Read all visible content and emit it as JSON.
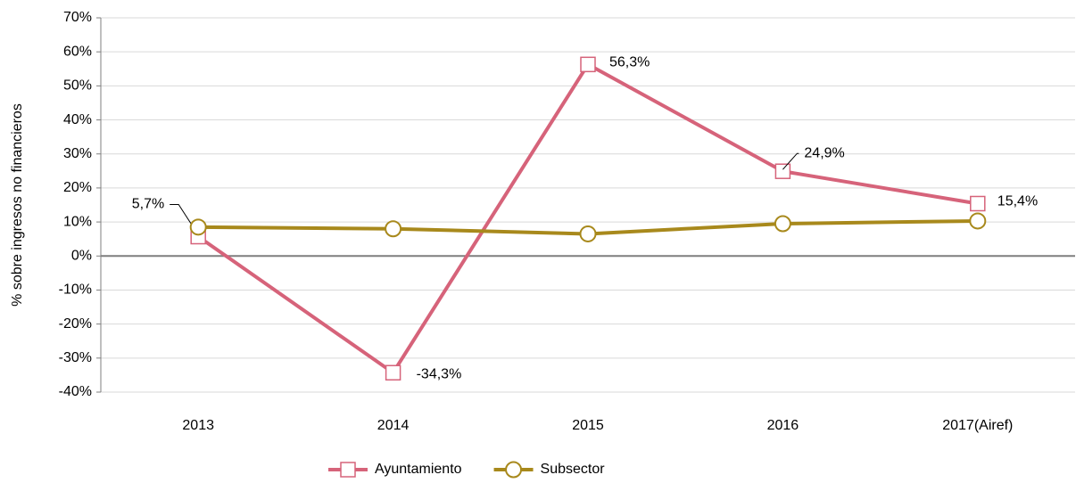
{
  "chart_data": {
    "type": "line",
    "y_label": "% sobre ingresos no financieros",
    "categories": [
      "2013",
      "2014",
      "2015",
      "2016",
      "2017(Airef)"
    ],
    "series": [
      {
        "name": "Ayuntamiento",
        "color": "#d6637a",
        "marker": "square",
        "values": [
          5.7,
          -34.3,
          56.3,
          24.9,
          15.4
        ],
        "value_labels": [
          "5,7%",
          "-34,3%",
          "56,3%",
          "24,9%",
          "15,4%"
        ]
      },
      {
        "name": "Subsector",
        "color": "#a8891c",
        "marker": "circle",
        "values": [
          8.5,
          8.0,
          6.5,
          9.5,
          10.3
        ]
      }
    ],
    "ylim": [
      -40,
      70
    ],
    "yticks": [
      {
        "value": -40,
        "label": "-40%"
      },
      {
        "value": -30,
        "label": "-30%"
      },
      {
        "value": -20,
        "label": "-20%"
      },
      {
        "value": -10,
        "label": "-10%"
      },
      {
        "value": 0,
        "label": "0%"
      },
      {
        "value": 10,
        "label": "10%"
      },
      {
        "value": 20,
        "label": "20%"
      },
      {
        "value": 30,
        "label": "30%"
      },
      {
        "value": 40,
        "label": "40%"
      },
      {
        "value": 50,
        "label": "50%"
      },
      {
        "value": 60,
        "label": "60%"
      },
      {
        "value": 70,
        "label": "70%"
      }
    ],
    "grid": true,
    "legend": "bottom"
  }
}
